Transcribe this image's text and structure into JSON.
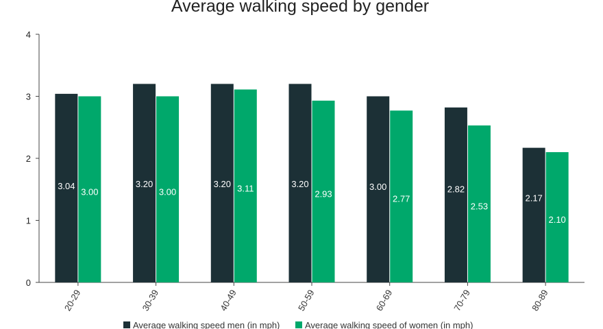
{
  "chart_data": {
    "type": "bar",
    "title": "Average walking speed by gender",
    "xlabel": "",
    "ylabel": "",
    "ylim": [
      0,
      4
    ],
    "yticks": [
      "0",
      "1",
      "2",
      "3",
      "4"
    ],
    "categories": [
      "20-29",
      "30-39",
      "40-49",
      "50-59",
      "60-69",
      "70-79",
      "80-89"
    ],
    "series": [
      {
        "name": "Average walking speed men (in mph)",
        "color": "#1c3036",
        "values": [
          3.04,
          3.2,
          3.2,
          3.2,
          3.0,
          2.82,
          2.17
        ],
        "labels": [
          "3.04",
          "3.20",
          "3.20",
          "3.20",
          "3.00",
          "2.82",
          "2.17"
        ]
      },
      {
        "name": "Average walking speed of women (in mph)",
        "color": "#00a86b",
        "values": [
          3.0,
          3.0,
          3.11,
          2.93,
          2.77,
          2.53,
          2.1
        ],
        "labels": [
          "3.00",
          "3.00",
          "3.11",
          "2.93",
          "2.77",
          "2.53",
          "2.10"
        ]
      }
    ],
    "legend": "bottom",
    "grid": false
  }
}
